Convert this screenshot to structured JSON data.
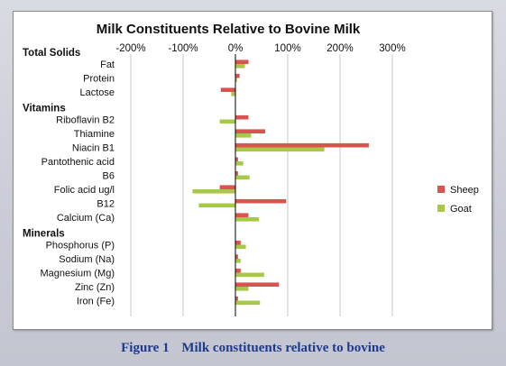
{
  "caption": {
    "number": "Figure 1",
    "text": "Milk constituents relative to bovine"
  },
  "colors": {
    "sheep": "#d9534f",
    "goat": "#a8c84a",
    "grid": "#c8c8c8",
    "axis": "#000000",
    "text": "#111111"
  },
  "chart_data": {
    "type": "bar",
    "orientation": "horizontal",
    "title": "Milk Constituents Relative to Bovine Milk",
    "xlim": [
      -200,
      300
    ],
    "x_ticks": [
      -200,
      -100,
      0,
      100,
      200,
      300
    ],
    "x_tick_labels": [
      "-200%",
      "-100%",
      "0%",
      "100%",
      "200%",
      "300%"
    ],
    "grid": true,
    "legend_position": "right",
    "groups": [
      {
        "label": "Total Solids",
        "start_index": 0
      },
      {
        "label": "Vitamins",
        "start_index": 3
      },
      {
        "label": "Minerals",
        "start_index": 11
      }
    ],
    "categories": [
      "Fat",
      "Protein",
      "Lactose",
      "Riboflavin B2",
      "Thiamine",
      "Niacin B1",
      "Pantothenic acid",
      "B6",
      "Folic acid ug/l",
      "B12",
      "Calcium (Ca)",
      "Phosphorus (P)",
      "Sodium (Na)",
      "Magnesium (Mg)",
      "Zinc (Zn)",
      "Iron (Fe)"
    ],
    "series": [
      {
        "name": "Sheep",
        "values": [
          25,
          8,
          -28,
          25,
          57,
          255,
          5,
          5,
          -30,
          97,
          25,
          10,
          5,
          10,
          83,
          5
        ]
      },
      {
        "name": "Goat",
        "values": [
          18,
          3,
          -8,
          -30,
          30,
          170,
          15,
          27,
          -82,
          -70,
          45,
          20,
          10,
          55,
          25,
          47
        ]
      }
    ]
  }
}
